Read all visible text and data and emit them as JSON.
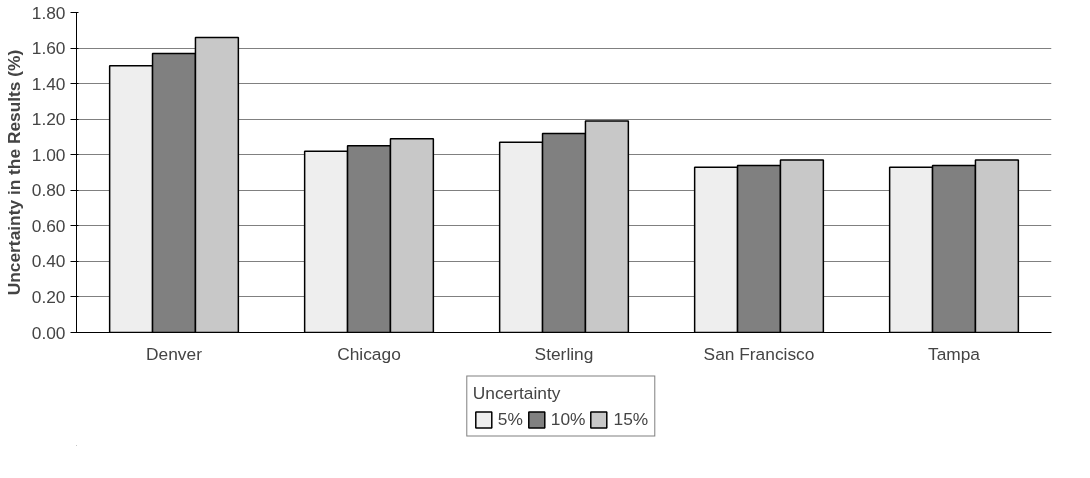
{
  "chart_data": {
    "type": "bar",
    "ylabel": "Uncertainty in the Results (%)",
    "legend_title": "Uncertainty",
    "categories": [
      "Denver",
      "Chicago",
      "Sterling",
      "San Francisco",
      "Tampa"
    ],
    "series": [
      {
        "name": "5%",
        "color": "#eeeeee",
        "values": [
          1.5,
          1.02,
          1.07,
          0.93,
          0.93
        ]
      },
      {
        "name": "10%",
        "color": "#808080",
        "values": [
          1.57,
          1.05,
          1.12,
          0.94,
          0.94
        ]
      },
      {
        "name": "15%",
        "color": "#c8c8c8",
        "values": [
          1.66,
          1.09,
          1.19,
          0.97,
          0.97
        ]
      }
    ],
    "ylim": [
      0,
      1.8
    ],
    "yticks": [
      {
        "value": 0,
        "label": "0.00"
      },
      {
        "value": 0.2,
        "label": "0.20"
      },
      {
        "value": 0.4,
        "label": "0.40"
      },
      {
        "value": 0.6,
        "label": "0.60"
      },
      {
        "value": 0.8,
        "label": "0.80"
      },
      {
        "value": 1.0,
        "label": "1.00"
      },
      {
        "value": 1.2,
        "label": "1.20"
      },
      {
        "value": 1.4,
        "label": "1.40"
      },
      {
        "value": 1.6,
        "label": "1.60"
      },
      {
        "value": 1.8,
        "label": "1.80"
      }
    ],
    "grid": "y",
    "legend": "bottom"
  }
}
